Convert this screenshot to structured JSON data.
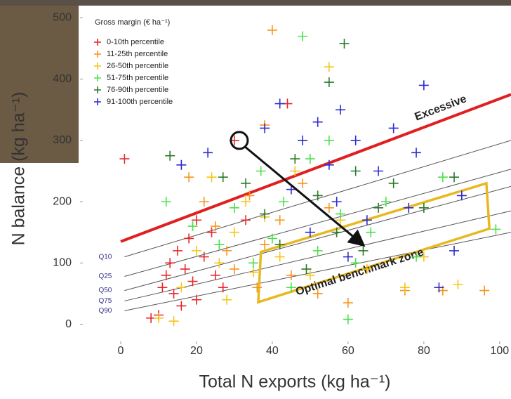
{
  "chart_data": {
    "type": "scatter",
    "xlabel": "Total N exports (kg ha⁻¹)",
    "ylabel": "N balance (kg ha⁻¹)",
    "legend_title": "Gross margin (€ ha⁻¹)",
    "legend": "upper left",
    "xlim": [
      -10,
      103
    ],
    "ylim": [
      -28,
      520
    ],
    "xticks": [
      0,
      20,
      40,
      60,
      80,
      100
    ],
    "yticks": [
      0,
      100,
      200,
      300,
      400,
      500
    ],
    "series": [
      {
        "name": "0-10th percentile",
        "color": "#e8262a",
        "x": [
          1,
          8,
          10,
          11,
          12,
          13,
          14,
          15,
          16,
          17,
          18,
          19,
          20,
          22,
          24,
          25,
          27,
          30,
          33,
          44,
          20
        ],
        "y": [
          270,
          10,
          15,
          60,
          80,
          100,
          50,
          120,
          30,
          90,
          140,
          70,
          40,
          110,
          150,
          80,
          60,
          300,
          170,
          360,
          170
        ]
      },
      {
        "name": "11-25th percentile",
        "color": "#f7941d",
        "x": [
          40,
          18,
          22,
          25,
          28,
          30,
          34,
          36,
          38,
          42,
          45,
          48,
          52,
          55,
          60,
          62,
          75,
          85,
          96,
          38
        ],
        "y": [
          480,
          240,
          200,
          160,
          120,
          90,
          210,
          60,
          130,
          170,
          80,
          230,
          50,
          190,
          35,
          140,
          55,
          55,
          55,
          325
        ]
      },
      {
        "name": "26-50th percentile",
        "color": "#f5c518",
        "x": [
          10,
          14,
          16,
          20,
          24,
          26,
          28,
          30,
          33,
          35,
          38,
          42,
          46,
          50,
          55,
          58,
          65,
          75,
          80,
          89
        ],
        "y": [
          10,
          5,
          60,
          120,
          240,
          100,
          40,
          150,
          200,
          85,
          175,
          110,
          250,
          80,
          420,
          170,
          90,
          60,
          110,
          65
        ]
      },
      {
        "name": "51-75th percentile",
        "color": "#4be04b",
        "x": [
          12,
          19,
          26,
          30,
          35,
          37,
          40,
          43,
          45,
          48,
          50,
          52,
          55,
          58,
          60,
          62,
          66,
          70,
          78,
          99,
          85
        ],
        "y": [
          200,
          160,
          130,
          190,
          100,
          250,
          140,
          200,
          60,
          470,
          270,
          120,
          300,
          180,
          8,
          100,
          150,
          200,
          110,
          155,
          240
        ]
      },
      {
        "name": "76-90th percentile",
        "color": "#2a7a2a",
        "x": [
          13,
          27,
          33,
          38,
          42,
          46,
          49,
          52,
          55,
          57,
          59,
          62,
          64,
          68,
          72,
          80,
          88
        ],
        "y": [
          275,
          240,
          230,
          180,
          130,
          270,
          90,
          210,
          395,
          150,
          458,
          250,
          120,
          190,
          230,
          190,
          240
        ]
      },
      {
        "name": "91-100th percentile",
        "color": "#2b2bd0",
        "x": [
          16,
          23,
          38,
          42,
          45,
          48,
          50,
          52,
          55,
          57,
          58,
          60,
          62,
          65,
          68,
          72,
          76,
          78,
          80,
          84,
          88,
          90
        ],
        "y": [
          260,
          280,
          320,
          360,
          220,
          300,
          150,
          330,
          260,
          200,
          350,
          110,
          300,
          170,
          250,
          320,
          190,
          280,
          390,
          60,
          120,
          210
        ]
      }
    ],
    "lines": [
      {
        "name": "Excessive",
        "color": "#e02020",
        "x": [
          0,
          103
        ],
        "y": [
          135,
          375
        ]
      },
      {
        "name": "Q10",
        "color": "#555555",
        "x": [
          1,
          103
        ],
        "y": [
          110,
          300
        ]
      },
      {
        "name": "Q25",
        "color": "#555555",
        "x": [
          1,
          103
        ],
        "y": [
          78,
          253
        ]
      },
      {
        "name": "Q50",
        "color": "#555555",
        "x": [
          1,
          103
        ],
        "y": [
          55,
          225
        ]
      },
      {
        "name": "Q75",
        "color": "#555555",
        "x": [
          1,
          103
        ],
        "y": [
          38,
          185
        ]
      },
      {
        "name": "Q90",
        "color": "#555555",
        "x": [
          1,
          103
        ],
        "y": [
          22,
          150
        ]
      }
    ],
    "benchmark_zone": {
      "label": "Optimal benchmark zone",
      "color": "#e8b820",
      "x": [
        37,
        96.5,
        97.3,
        36.3
      ],
      "y": [
        118,
        230,
        156,
        36
      ]
    },
    "highlight": {
      "x": 31.3,
      "y": 300,
      "arrow_x": 63.7,
      "arrow_y": 131
    }
  }
}
